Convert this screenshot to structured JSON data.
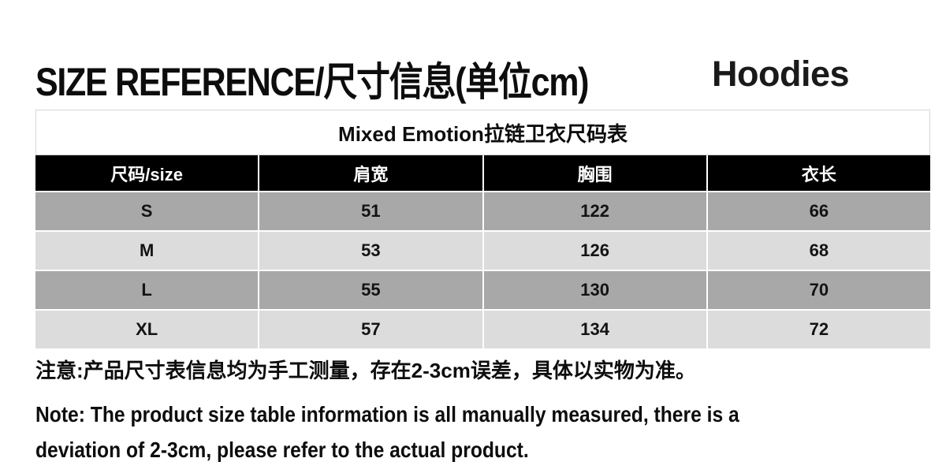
{
  "header": {
    "title": "SIZE REFERENCE/尺寸信息(单位cm)",
    "category_label": "Hoodies"
  },
  "size_table": {
    "caption": "Mixed Emotion拉链卫衣尺码表",
    "columns": [
      "尺码/size",
      "肩宽",
      "胸围",
      "衣长"
    ],
    "rows": [
      {
        "cells": [
          "S",
          "51",
          "122",
          "66"
        ]
      },
      {
        "cells": [
          "M",
          "53",
          "126",
          "68"
        ]
      },
      {
        "cells": [
          "L",
          "55",
          "130",
          "70"
        ]
      },
      {
        "cells": [
          "XL",
          "57",
          "134",
          "72"
        ]
      }
    ]
  },
  "notes": {
    "zh": "注意:产品尺寸表信息均为手工测量，存在2-3cm误差，具体以实物为准。",
    "en_lines": [
      "Note: The product size table information is all manually measured, there is a",
      "deviation of 2-3cm, please refer to the actual product."
    ]
  },
  "colors": {
    "header_row_bg": "#000000",
    "header_row_text": "#ffffff",
    "row_dark": "#a8a8a8",
    "row_light": "#dcdcdc",
    "text": "#0d0d0d"
  }
}
